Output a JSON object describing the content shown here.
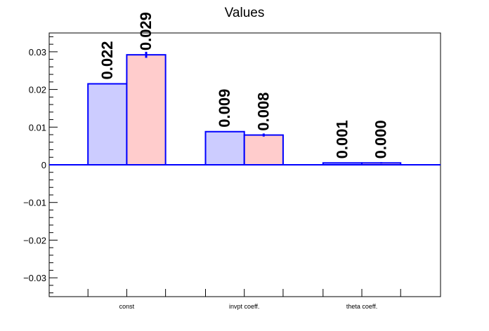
{
  "chart_data": {
    "type": "bar",
    "title": "Values",
    "categories": [
      "const",
      "invpt coeff.",
      "theta coeff."
    ],
    "series": [
      {
        "values": [
          0.0215,
          0.0088,
          0.0005
        ],
        "labels": [
          "0.022",
          "0.009",
          "0.001"
        ],
        "fill": "#ccccff",
        "stroke": "#0000ff"
      },
      {
        "values": [
          0.0292,
          0.0079,
          0.0005
        ],
        "errors": [
          0.0008,
          0.0004,
          0.0002
        ],
        "labels": [
          "0.029",
          "0.008",
          "0.000"
        ],
        "fill": "#ffcccc",
        "stroke": "#0000ff"
      }
    ],
    "ylim": [
      -0.035,
      0.035
    ],
    "yticks": [
      -0.03,
      -0.02,
      -0.01,
      0,
      0.01,
      0.02,
      0.03
    ],
    "ytick_labels": [
      "−0.03",
      "−0.02",
      "−0.01",
      "0",
      "0.01",
      "0.02",
      "0.03"
    ],
    "grid": false,
    "baseline_color": "#0000ff"
  }
}
